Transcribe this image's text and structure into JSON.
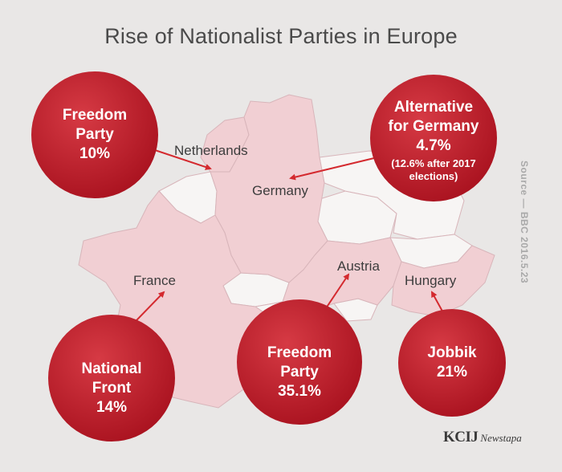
{
  "title": "Rise of Nationalist Parties in Europe",
  "source_note": "Source — BBC 2016.5.23",
  "logo": {
    "main": "KCIJ",
    "sub": "Newstapa"
  },
  "colors": {
    "background": "#e9e7e6",
    "country_fill": "#f1cfd3",
    "neighbor_fill": "#f7f5f4",
    "border": "#d8b5ba",
    "bubble_red": "#c41e2f",
    "arrow": "#d42a2f",
    "title_text": "#4a4a4a"
  },
  "countries": {
    "netherlands": "Netherlands",
    "germany": "Germany",
    "france": "France",
    "austria": "Austria",
    "hungary": "Hungary"
  },
  "parties": {
    "netherlands": {
      "line1": "Freedom",
      "line2": "Party",
      "share": "10%"
    },
    "germany": {
      "line1": "Alternative",
      "line2": "for Germany",
      "share": "4.7%",
      "note": "(12.6% after 2017 elections)"
    },
    "france": {
      "line1": "National",
      "line2": "Front",
      "share": "14%"
    },
    "austria": {
      "line1": "Freedom",
      "line2": "Party",
      "share": "35.1%"
    },
    "hungary": {
      "line1": "Jobbik",
      "share": "21%"
    }
  }
}
